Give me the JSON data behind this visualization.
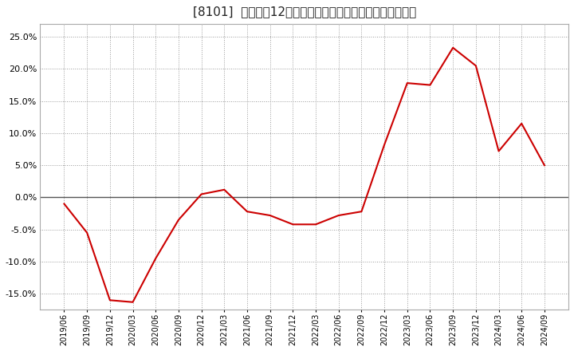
{
  "title": "[8101]  売上高の12か月移動合計の対前年同期増減率の推移",
  "line_color": "#cc0000",
  "background_color": "#ffffff",
  "plot_bg_color": "#ffffff",
  "grid_color": "#999999",
  "zero_line_color": "#555555",
  "ylim": [
    -0.175,
    0.27
  ],
  "yticks": [
    -0.15,
    -0.1,
    -0.05,
    0.0,
    0.05,
    0.1,
    0.15,
    0.2,
    0.25
  ],
  "dates": [
    "2019/06",
    "2019/09",
    "2019/12",
    "2020/03",
    "2020/06",
    "2020/09",
    "2020/12",
    "2021/03",
    "2021/06",
    "2021/09",
    "2021/12",
    "2022/03",
    "2022/06",
    "2022/09",
    "2022/12",
    "2023/03",
    "2023/06",
    "2023/09",
    "2023/12",
    "2024/03",
    "2024/06",
    "2024/09"
  ],
  "values": [
    -0.01,
    -0.055,
    -0.16,
    -0.163,
    -0.095,
    -0.035,
    0.005,
    0.012,
    -0.022,
    -0.028,
    -0.042,
    -0.042,
    -0.028,
    -0.022,
    0.082,
    0.178,
    0.175,
    0.233,
    0.205,
    0.072,
    0.115,
    0.05
  ]
}
